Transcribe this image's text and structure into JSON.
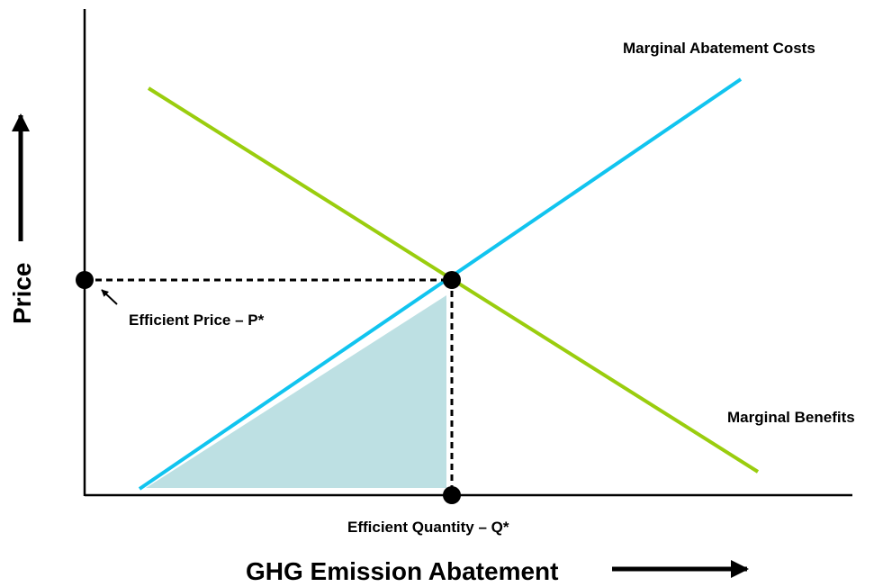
{
  "diagram": {
    "curves": {
      "marginal_abatement_costs": {
        "label": "Marginal Abatement Costs",
        "color": "#11c4ef"
      },
      "marginal_benefits": {
        "label": "Marginal Benefits",
        "color": "#9acd0e"
      }
    },
    "equilibrium": {
      "price_label": "Efficient Price – P*",
      "quantity_label": "Efficient Quantity – Q*"
    },
    "axes": {
      "x_title": "GHG Emission Abatement",
      "y_title": "Price"
    },
    "shaded_area_color": "#bde0e3",
    "marker_color": "#000000"
  }
}
